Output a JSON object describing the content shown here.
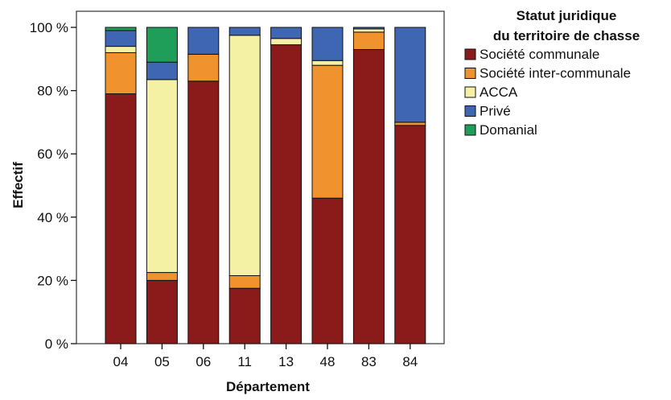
{
  "chart_data": {
    "type": "bar",
    "stacked": true,
    "xlabel": "Département",
    "ylabel": "Effectif",
    "categories": [
      "04",
      "05",
      "06",
      "11",
      "13",
      "48",
      "83",
      "84"
    ],
    "ylim": [
      0,
      100
    ],
    "yticks": [
      0,
      20,
      40,
      60,
      80,
      100
    ],
    "ytick_labels": [
      "0 %",
      "20 %",
      "40 %",
      "60 %",
      "80 %",
      "100 %"
    ],
    "legend": {
      "title_lines": [
        "Statut juridique",
        "du territoire de chasse"
      ],
      "position": "top-right, outside plot"
    },
    "series": [
      {
        "name": "Société communale",
        "color": "#8b1a1a",
        "values": [
          79,
          20,
          83,
          17.5,
          94.5,
          46,
          93,
          69
        ]
      },
      {
        "name": "Société inter-communale",
        "color": "#f0922d",
        "values": [
          13,
          2.5,
          8.5,
          4,
          0,
          42,
          5.5,
          1
        ]
      },
      {
        "name": "ACCA",
        "color": "#f4f1a4",
        "values": [
          2,
          61,
          0,
          76,
          2,
          1.5,
          1,
          0
        ]
      },
      {
        "name": "Privé",
        "color": "#3f66b2",
        "values": [
          5,
          5.5,
          8.5,
          2.5,
          3.5,
          10.5,
          0.5,
          30
        ]
      },
      {
        "name": "Domanial",
        "color": "#1f9e5a",
        "values": [
          1,
          11,
          0,
          0,
          0,
          0,
          0,
          0
        ]
      }
    ]
  }
}
